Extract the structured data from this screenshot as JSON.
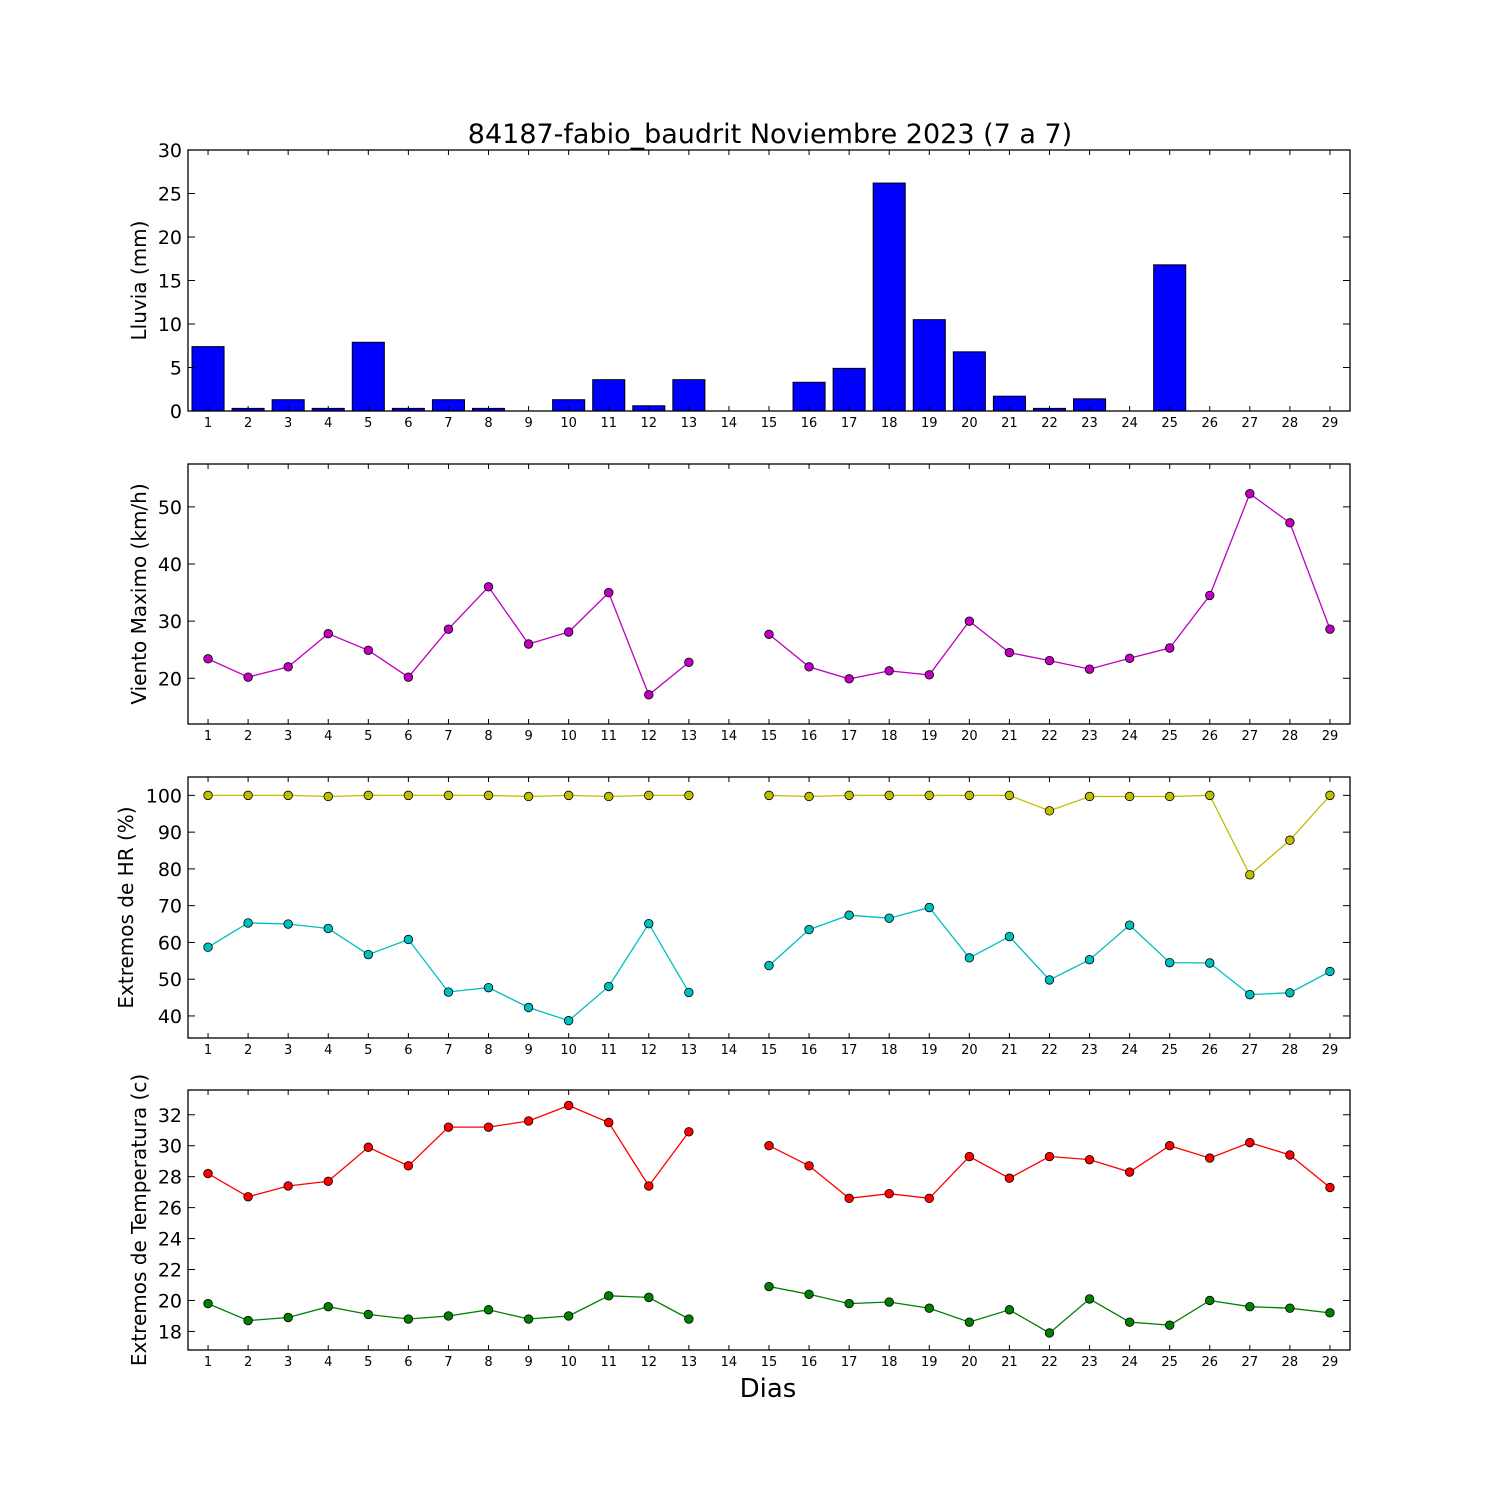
{
  "title": "84187-fabio_baudrit Noviembre 2023  (7 a 7)",
  "xlabel": "Dias",
  "chart_data": [
    {
      "type": "bar",
      "title": "84187-fabio_baudrit Noviembre 2023  (7 a 7)",
      "xlabel": "",
      "ylabel": "Lluvia (mm)",
      "ylim": [
        0,
        30
      ],
      "yticks": [
        0,
        5,
        10,
        15,
        20,
        25,
        30
      ],
      "x": [
        1,
        2,
        3,
        4,
        5,
        6,
        7,
        8,
        9,
        10,
        11,
        12,
        13,
        14,
        15,
        16,
        17,
        18,
        19,
        20,
        21,
        22,
        23,
        24,
        25,
        26,
        27,
        28,
        29
      ],
      "series": [
        {
          "color": "#0000ff",
          "values": [
            7.4,
            0.3,
            1.3,
            0.3,
            7.9,
            0.3,
            1.3,
            0.3,
            0.0,
            1.3,
            3.6,
            0.6,
            3.6,
            0.0,
            0.0,
            3.3,
            4.9,
            26.2,
            10.5,
            6.8,
            1.7,
            0.3,
            1.4,
            0.0,
            16.8,
            0.0,
            0.0,
            0.0,
            0.0
          ]
        }
      ]
    },
    {
      "type": "line",
      "ylabel": "Viento Maximo (km/h)",
      "ylim": [
        12,
        57.5
      ],
      "yticks": [
        20,
        30,
        40,
        50
      ],
      "x": [
        1,
        2,
        3,
        4,
        5,
        6,
        7,
        8,
        9,
        10,
        11,
        12,
        13,
        14,
        15,
        16,
        17,
        18,
        19,
        20,
        21,
        22,
        23,
        24,
        25,
        26,
        27,
        28,
        29
      ],
      "series": [
        {
          "color": "#bf00bf",
          "values": [
            23.4,
            20.2,
            22.0,
            27.8,
            24.9,
            20.2,
            28.6,
            36.0,
            26.0,
            28.1,
            35.0,
            17.1,
            22.8,
            null,
            27.7,
            22.0,
            19.9,
            21.3,
            20.6,
            30.0,
            24.5,
            23.1,
            21.6,
            23.5,
            25.3,
            34.5,
            52.3,
            47.2,
            28.6
          ]
        }
      ]
    },
    {
      "type": "line",
      "ylabel": "Extremos de HR (%)",
      "ylim": [
        34,
        105
      ],
      "yticks": [
        40,
        50,
        60,
        70,
        80,
        90,
        100
      ],
      "x": [
        1,
        2,
        3,
        4,
        5,
        6,
        7,
        8,
        9,
        10,
        11,
        12,
        13,
        14,
        15,
        16,
        17,
        18,
        19,
        20,
        21,
        22,
        23,
        24,
        25,
        26,
        27,
        28,
        29
      ],
      "series": [
        {
          "color": "#bfbf00",
          "values": [
            100,
            100,
            100,
            99.7,
            100,
            100,
            100,
            100,
            99.7,
            100,
            99.7,
            100,
            100,
            null,
            100,
            99.7,
            100,
            100,
            100,
            100,
            100,
            95.8,
            99.7,
            99.7,
            99.7,
            100,
            78.4,
            87.8,
            100
          ]
        },
        {
          "color": "#00bfbf",
          "values": [
            58.7,
            65.3,
            65.0,
            63.8,
            56.7,
            60.8,
            46.5,
            47.7,
            42.3,
            38.7,
            48.0,
            65.1,
            46.4,
            null,
            53.7,
            63.5,
            67.4,
            66.6,
            69.5,
            55.8,
            61.6,
            49.8,
            55.3,
            64.7,
            54.5,
            54.4,
            45.8,
            46.3,
            52.1
          ]
        }
      ]
    },
    {
      "type": "line",
      "ylabel": "Extremos de Temperatura (c)",
      "ylim": [
        16.8,
        33.6
      ],
      "yticks": [
        18,
        20,
        22,
        24,
        26,
        28,
        30,
        32
      ],
      "x": [
        1,
        2,
        3,
        4,
        5,
        6,
        7,
        8,
        9,
        10,
        11,
        12,
        13,
        14,
        15,
        16,
        17,
        18,
        19,
        20,
        21,
        22,
        23,
        24,
        25,
        26,
        27,
        28,
        29
      ],
      "series": [
        {
          "color": "#ff0000",
          "values": [
            28.2,
            26.7,
            27.4,
            27.7,
            29.9,
            28.7,
            31.2,
            31.2,
            31.6,
            32.6,
            31.5,
            27.4,
            30.9,
            null,
            30.0,
            28.7,
            26.6,
            26.9,
            26.6,
            29.3,
            27.9,
            29.3,
            29.1,
            28.3,
            30.0,
            29.2,
            30.2,
            29.4,
            27.3
          ]
        },
        {
          "color": "#008000",
          "values": [
            19.8,
            18.7,
            18.9,
            19.6,
            19.1,
            18.8,
            19.0,
            19.4,
            18.8,
            19.0,
            20.3,
            20.2,
            18.8,
            null,
            20.9,
            20.4,
            19.8,
            19.9,
            19.5,
            18.6,
            19.4,
            17.9,
            20.1,
            18.6,
            18.4,
            20.0,
            19.6,
            19.5,
            19.2
          ]
        }
      ]
    }
  ]
}
